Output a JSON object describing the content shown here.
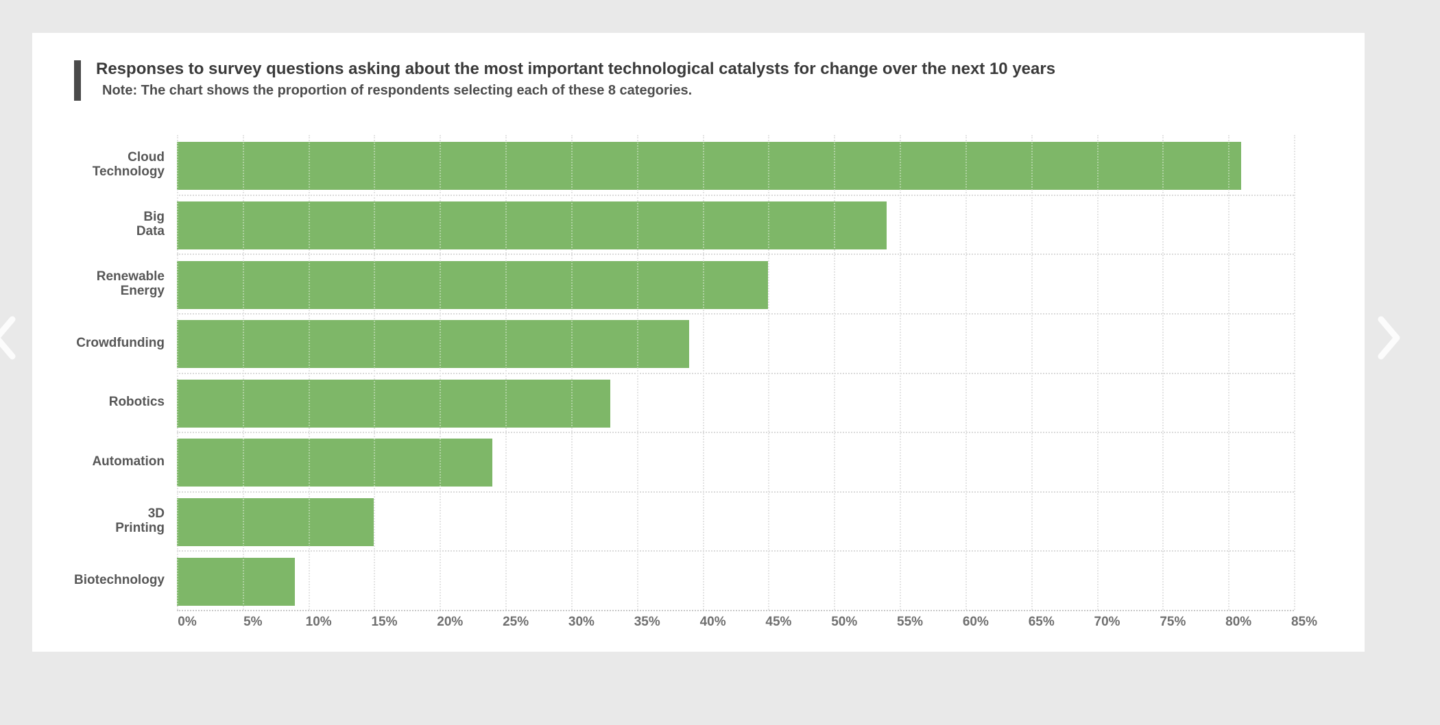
{
  "header": {
    "accent_color": "#4a4a4a"
  },
  "chart_data": {
    "type": "bar",
    "orientation": "horizontal",
    "title": "Responses to survey questions asking about the most important technological catalysts for change over the next 10 years",
    "note": "Note: The chart shows the proportion of respondents selecting each of these 8 categories.",
    "categories": [
      "Cloud\nTechnology",
      "Big\nData",
      "Renewable\nEnergy",
      "Crowdfunding",
      "Robotics",
      "Automation",
      "3D\nPrinting",
      "Biotechnology"
    ],
    "values": [
      81,
      54,
      45,
      39,
      33,
      24,
      15,
      9
    ],
    "unit": "%",
    "xlabel": "",
    "ylabel": "",
    "xlim": [
      0,
      85
    ],
    "x_tick_step": 5,
    "x_tick_labels": [
      "0%",
      "5%",
      "10%",
      "15%",
      "20%",
      "25%",
      "30%",
      "35%",
      "40%",
      "45%",
      "50%",
      "55%",
      "60%",
      "65%",
      "70%",
      "75%",
      "80%",
      "85%"
    ],
    "grid": "dotted",
    "legend": "none",
    "bar_color": "#7eb768",
    "tick_label_color": "#6f6f6f",
    "category_label_color": "#575757"
  },
  "carousel": {
    "prev_icon": "chevron-left",
    "next_icon": "chevron-right",
    "chevron_color": "#fcfcfc"
  }
}
